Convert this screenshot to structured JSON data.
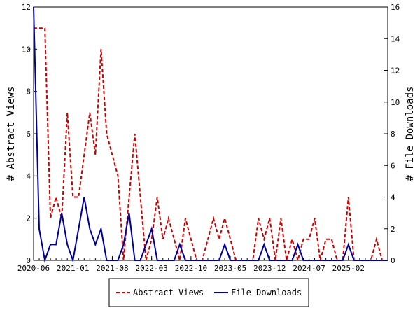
{
  "chart_data": {
    "type": "line",
    "title": "",
    "xlabel": "",
    "y_left_label": "# Abstract Views",
    "y_right_label": "# File Downloads",
    "y_left_lim": [
      0,
      12
    ],
    "y_right_lim": [
      0,
      16
    ],
    "y_left_ticks": [
      0,
      2,
      4,
      6,
      8,
      10,
      12
    ],
    "y_right_ticks": [
      0,
      2,
      4,
      6,
      8,
      10,
      12,
      14,
      16
    ],
    "grid": false,
    "legend_position": "bottom",
    "x_tick_labels": [
      {
        "label": "2020-06",
        "index": 0
      },
      {
        "label": "2021-01",
        "index": 7
      },
      {
        "label": "2021-08",
        "index": 14
      },
      {
        "label": "2022-03",
        "index": 21
      },
      {
        "label": "2022-10",
        "index": 28
      },
      {
        "label": "2023-05",
        "index": 35
      },
      {
        "label": "2023-12",
        "index": 42
      },
      {
        "label": "2024-07",
        "index": 49
      },
      {
        "label": "2025-02",
        "index": 56
      }
    ],
    "x_count": 64,
    "series": [
      {
        "name": "Abstract Views",
        "axis": "left",
        "color": "#cc0000",
        "dash": "dashed",
        "values": [
          11,
          11,
          11,
          2,
          3,
          2,
          7,
          3,
          3,
          5,
          7,
          5,
          10,
          6,
          5,
          4,
          0,
          3,
          6,
          3,
          0,
          1,
          3,
          1,
          2,
          1,
          0,
          2,
          1,
          0,
          0,
          1,
          2,
          1,
          2,
          1,
          0,
          0,
          0,
          0,
          2,
          1,
          2,
          0,
          2,
          0,
          1,
          0,
          1,
          1,
          2,
          0,
          1,
          1,
          0,
          0,
          3,
          0,
          0,
          0,
          0,
          1,
          0,
          0
        ]
      },
      {
        "name": "File Downloads",
        "axis": "right",
        "color": "#000099",
        "dash": "solid",
        "values": [
          16,
          2,
          0,
          1,
          1,
          3,
          1,
          0,
          2,
          4,
          2,
          1,
          2,
          0,
          0,
          0,
          1,
          3,
          0,
          0,
          1,
          2,
          0,
          0,
          0,
          0,
          1,
          0,
          0,
          0,
          0,
          0,
          0,
          0,
          1,
          0,
          0,
          0,
          0,
          0,
          0,
          1,
          0,
          0,
          0,
          0,
          0,
          1,
          0,
          0,
          0,
          0,
          0,
          0,
          0,
          0,
          1,
          0,
          0,
          0,
          0,
          0,
          0,
          0
        ]
      }
    ]
  }
}
